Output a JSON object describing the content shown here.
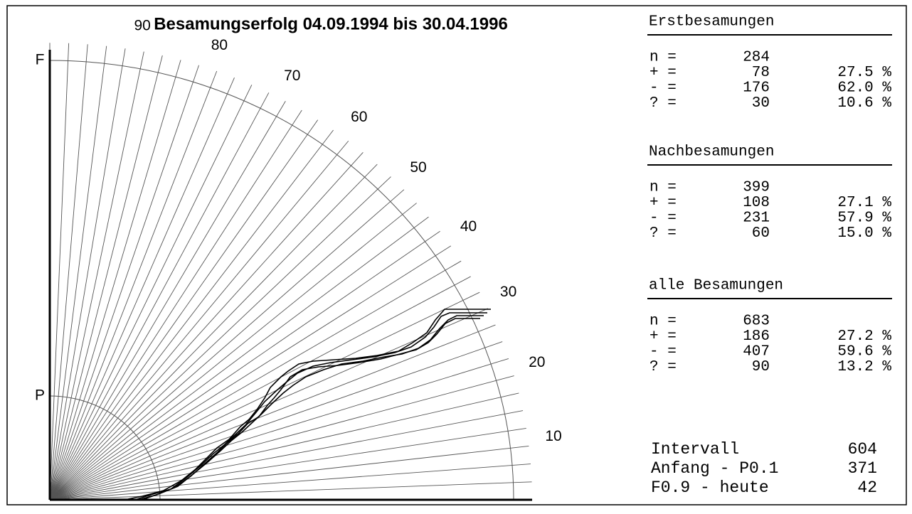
{
  "title": "Besamungserfolg 04.09.1994 bis 30.04.1996",
  "axis_labels": {
    "top": "F",
    "inner": "P"
  },
  "rays": [
    "10",
    "20",
    "30",
    "40",
    "50",
    "60",
    "70",
    "80",
    "90"
  ],
  "sections": [
    {
      "title": "Erstbesamungen",
      "rows": [
        [
          "n =",
          "284",
          ""
        ],
        [
          "+ =",
          "78",
          "27.5 %"
        ],
        [
          "- =",
          "176",
          "62.0 %"
        ],
        [
          "? =",
          "30",
          "10.6 %"
        ]
      ]
    },
    {
      "title": "Nachbesamungen",
      "rows": [
        [
          "n =",
          "399",
          ""
        ],
        [
          "+ =",
          "108",
          "27.1 %"
        ],
        [
          "- =",
          "231",
          "57.9 %"
        ],
        [
          "? =",
          "60",
          "15.0 %"
        ]
      ]
    },
    {
      "title": "alle Besamungen",
      "rows": [
        [
          "n =",
          "683",
          ""
        ],
        [
          "+ =",
          "186",
          "27.2 %"
        ],
        [
          "- =",
          "407",
          "59.6 %"
        ],
        [
          "? =",
          "90",
          "13.2 %"
        ]
      ]
    }
  ],
  "footer": [
    [
      "Intervall",
      "604"
    ],
    [
      "Anfang - P0.1",
      "371"
    ],
    [
      "F0.9 - heute",
      "42"
    ]
  ]
}
